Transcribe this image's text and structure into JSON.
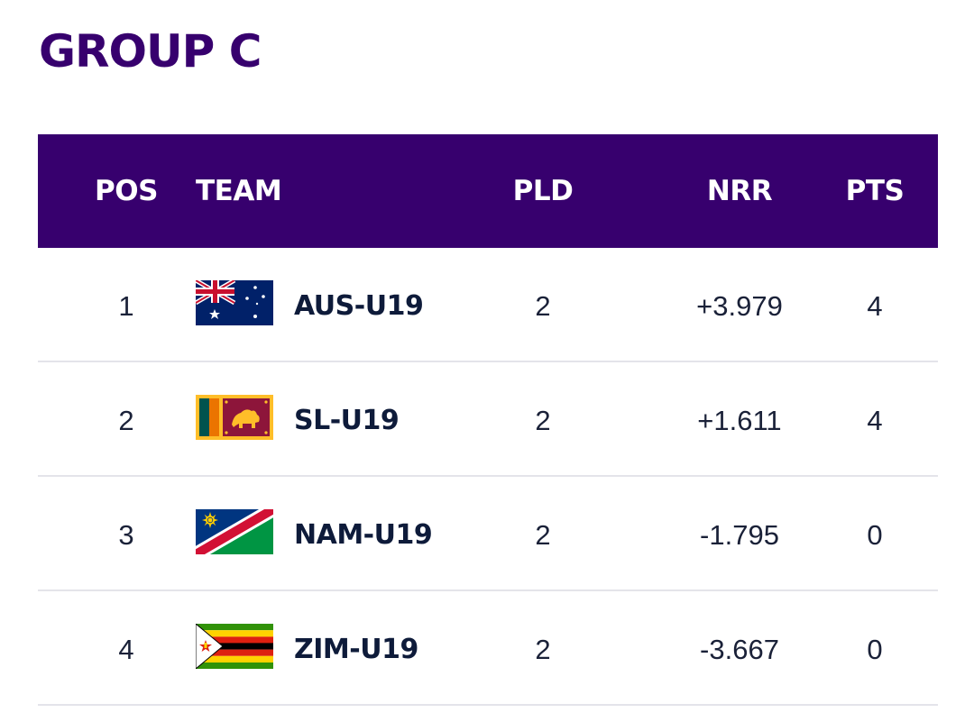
{
  "group_title": "GROUP C",
  "colors": {
    "header_bg": "#37006e",
    "title": "#37006e",
    "row_text": "#1a2138",
    "divider": "#e4e4ea"
  },
  "table": {
    "headers": {
      "pos": "POS",
      "team": "TEAM",
      "pld": "PLD",
      "nrr": "NRR",
      "pts": "PTS"
    },
    "rows": [
      {
        "pos": "1",
        "team": "AUS-U19",
        "flag": "australia-flag-icon",
        "pld": "2",
        "nrr": "+3.979",
        "pts": "4"
      },
      {
        "pos": "2",
        "team": "SL-U19",
        "flag": "sri-lanka-flag-icon",
        "pld": "2",
        "nrr": "+1.611",
        "pts": "4"
      },
      {
        "pos": "3",
        "team": "NAM-U19",
        "flag": "namibia-flag-icon",
        "pld": "2",
        "nrr": "-1.795",
        "pts": "0"
      },
      {
        "pos": "4",
        "team": "ZIM-U19",
        "flag": "zimbabwe-flag-icon",
        "pld": "2",
        "nrr": "-3.667",
        "pts": "0"
      }
    ]
  }
}
